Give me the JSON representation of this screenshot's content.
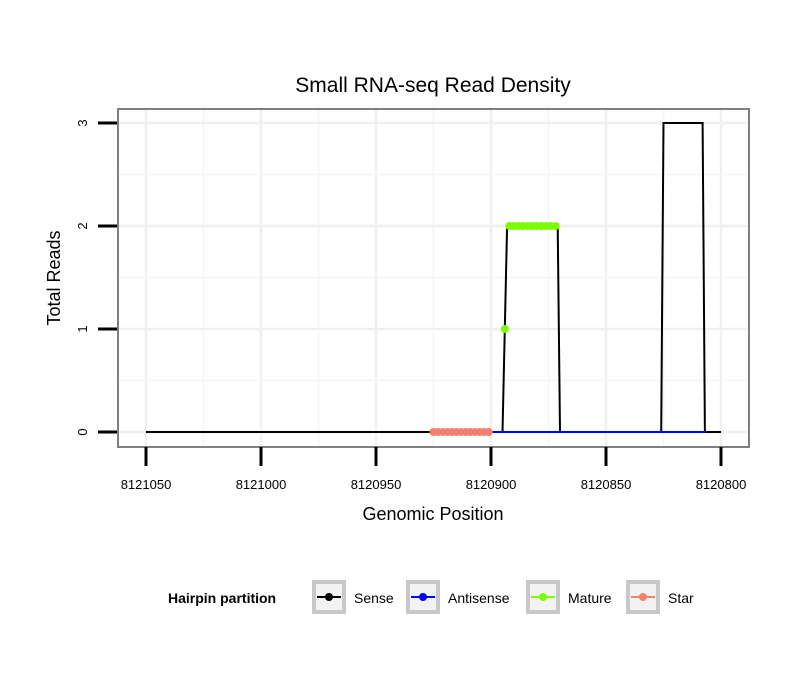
{
  "chart_data": {
    "type": "line",
    "title": "Small RNA-seq Read Density",
    "xlabel": "Genomic Position",
    "ylabel": "Total Reads",
    "xlim": [
      8121050,
      8120800
    ],
    "ylim": [
      0,
      3
    ],
    "x_reversed": true,
    "x_ticks": [
      8121050,
      8121000,
      8120950,
      8120900,
      8120850,
      8120800
    ],
    "x_tick_labels": [
      "8121050",
      "8121000",
      "8120950",
      "8120900",
      "8120850",
      "8120800"
    ],
    "y_ticks": [
      0,
      1,
      2,
      3
    ],
    "y_tick_labels": [
      "0",
      "1",
      "2",
      "3"
    ],
    "grid": true,
    "legend": {
      "title": "Hairpin partition",
      "position": "bottom",
      "entries": [
        "Sense",
        "Antisense",
        "Mature",
        "Star"
      ]
    },
    "series": [
      {
        "name": "Sense",
        "color": "#000000",
        "style": "line",
        "x": [
          8121050,
          8120895,
          8120893,
          8120871,
          8120870,
          8120826,
          8120825,
          8120808,
          8120807,
          8120800
        ],
        "y": [
          0,
          0,
          2,
          2,
          0,
          0,
          3,
          3,
          0,
          0
        ]
      },
      {
        "name": "Antisense",
        "color": "#0000ff",
        "style": "line",
        "x": [
          8120900,
          8120870,
          8120826,
          8120807
        ],
        "y": [
          0,
          0,
          0,
          0
        ]
      },
      {
        "name": "Mature",
        "color": "#7cfc00",
        "style": "points",
        "x": [
          8120894,
          8120892,
          8120890,
          8120888,
          8120886,
          8120884,
          8120882,
          8120880,
          8120878,
          8120876,
          8120874,
          8120872
        ],
        "y": [
          1,
          2,
          2,
          2,
          2,
          2,
          2,
          2,
          2,
          2,
          2,
          2
        ]
      },
      {
        "name": "Star",
        "color": "#f08070",
        "style": "points",
        "x": [
          8120925,
          8120923,
          8120921,
          8120919,
          8120917,
          8120915,
          8120913,
          8120911,
          8120909,
          8120907,
          8120905,
          8120903,
          8120901
        ],
        "y": [
          0,
          0,
          0,
          0,
          0,
          0,
          0,
          0,
          0,
          0,
          0,
          0,
          0
        ]
      }
    ]
  }
}
